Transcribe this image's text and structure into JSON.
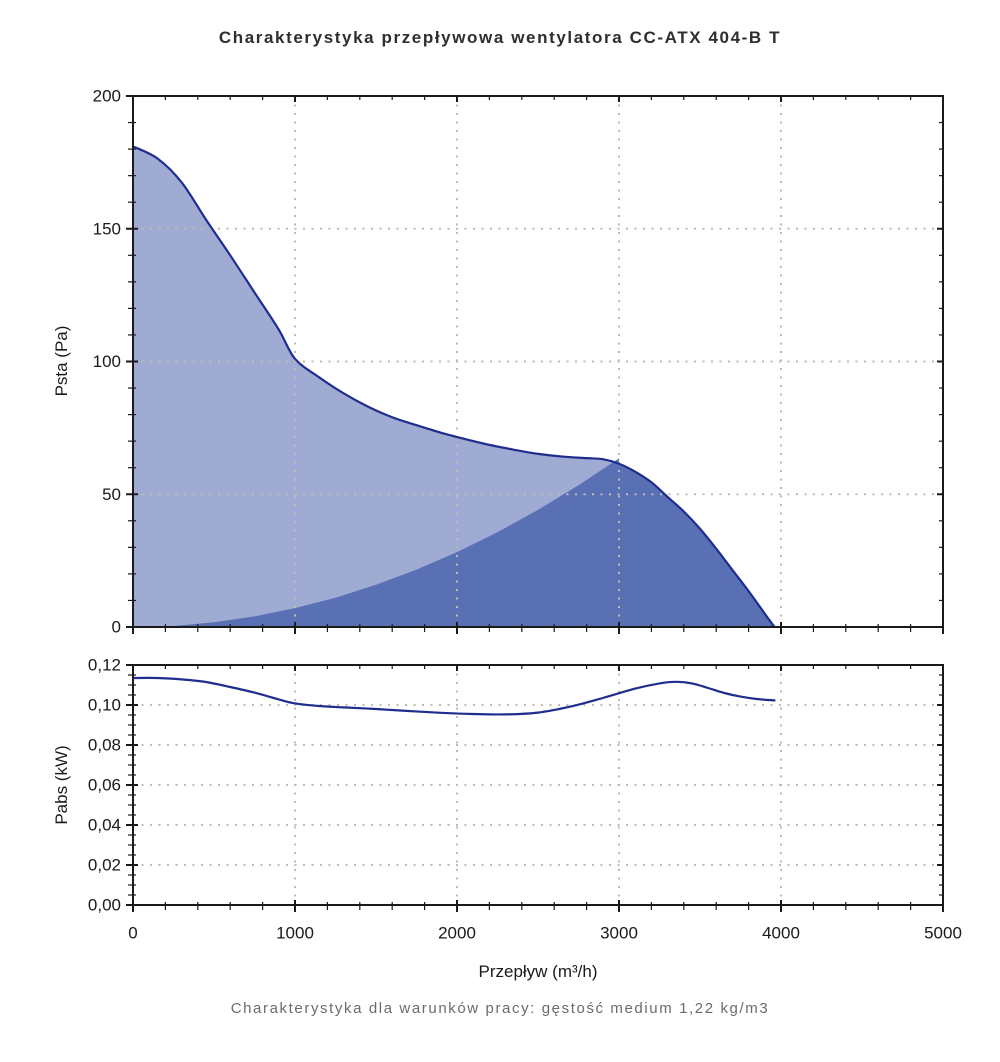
{
  "title": "Charakterystyka przepływowa wentylatora CC-ATX 404-B T",
  "caption": "Charakterystyka dla warunków pracy: gęstość medium 1,22 kg/m3",
  "axes": {
    "x_label": "Przepływ (m³/h)",
    "y_label_top": "Psta (Pa)",
    "y_label_bottom": "Pabs (kW)"
  },
  "colors": {
    "curve": "#1f2d8e",
    "area_light": "#9fabd2",
    "area_dark": "#5a70b5",
    "grid": "#bfbcae",
    "axis": "#1a1a1a"
  },
  "chart_data": [
    {
      "type": "area",
      "name": "pressure-chart",
      "ylabel": "Psta (Pa)",
      "xlabel": "Przepływ (m³/h)",
      "xlim": [
        0,
        5000
      ],
      "ylim": [
        0,
        200
      ],
      "x_major_ticks": [
        0,
        1000,
        2000,
        3000,
        4000,
        5000
      ],
      "x_minor_step": 200,
      "x_tick_labels": [],
      "y_major_ticks": [
        0,
        50,
        100,
        150,
        200
      ],
      "y_minor_step": 10,
      "y_tick_labels": [
        "0",
        "50",
        "100",
        "150",
        "200"
      ],
      "grid_x": [
        1000,
        2000,
        3000,
        4000
      ],
      "grid_y": [
        50,
        100,
        150
      ],
      "grid_style": "dotted",
      "legend": "none",
      "series": [
        {
          "name": "fan-curve",
          "role": "line-with-area",
          "fill": "light",
          "points": [
            [
              0,
              181
            ],
            [
              150,
              176.5
            ],
            [
              300,
              167.5
            ],
            [
              450,
              153.5
            ],
            [
              600,
              140
            ],
            [
              750,
              126
            ],
            [
              900,
              112
            ],
            [
              1000,
              101
            ],
            [
              1150,
              94
            ],
            [
              1300,
              88
            ],
            [
              1450,
              83
            ],
            [
              1600,
              79
            ],
            [
              1750,
              76
            ],
            [
              1900,
              73.2
            ],
            [
              2050,
              70.8
            ],
            [
              2200,
              68.6
            ],
            [
              2350,
              66.8
            ],
            [
              2500,
              65.2
            ],
            [
              2650,
              64.2
            ],
            [
              2800,
              63.6
            ],
            [
              2900,
              63.2
            ],
            [
              3000,
              61.5
            ],
            [
              3100,
              58.5
            ],
            [
              3200,
              54.5
            ],
            [
              3300,
              49
            ],
            [
              3400,
              43.5
            ],
            [
              3500,
              37
            ],
            [
              3600,
              29.5
            ],
            [
              3700,
              21.5
            ],
            [
              3800,
              13.5
            ],
            [
              3900,
              5
            ],
            [
              3960,
              0
            ]
          ]
        },
        {
          "name": "system-resistance-curve",
          "role": "area-only",
          "fill": "dark",
          "points": [
            [
              0,
              0
            ],
            [
              250,
              0.4
            ],
            [
              500,
              1.8
            ],
            [
              750,
              4
            ],
            [
              1000,
              7.1
            ],
            [
              1250,
              11
            ],
            [
              1500,
              15.9
            ],
            [
              1750,
              21.6
            ],
            [
              2000,
              28.2
            ],
            [
              2250,
              35.7
            ],
            [
              2500,
              44.1
            ],
            [
              2750,
              53.4
            ],
            [
              3000,
              63.5
            ]
          ]
        }
      ],
      "operating_point": [
        3000,
        62
      ]
    },
    {
      "type": "line",
      "name": "power-chart",
      "ylabel": "Pabs (kW)",
      "xlabel": "Przepływ (m³/h)",
      "xlim": [
        0,
        5000
      ],
      "ylim": [
        0,
        0.12
      ],
      "x_major_ticks": [
        0,
        1000,
        2000,
        3000,
        4000,
        5000
      ],
      "x_minor_step": 200,
      "x_tick_labels": [
        "0",
        "1000",
        "2000",
        "3000",
        "4000",
        "5000"
      ],
      "y_major_ticks": [
        0,
        0.02,
        0.04,
        0.06,
        0.08,
        0.1,
        0.12
      ],
      "y_minor_step": 0.005,
      "y_tick_labels": [
        "0,00",
        "0,02",
        "0,04",
        "0,06",
        "0,08",
        "0,10",
        "0,12"
      ],
      "grid_x": [
        1000,
        2000,
        3000,
        4000
      ],
      "grid_y": [
        0.02,
        0.04,
        0.06,
        0.08,
        0.1
      ],
      "grid_style": "dotted",
      "legend": "none",
      "series": [
        {
          "name": "power-curve",
          "role": "line",
          "points": [
            [
              0,
              0.1135
            ],
            [
              150,
              0.1135
            ],
            [
              300,
              0.1128
            ],
            [
              450,
              0.1115
            ],
            [
              600,
              0.109
            ],
            [
              750,
              0.1062
            ],
            [
              900,
              0.1028
            ],
            [
              1000,
              0.1008
            ],
            [
              1150,
              0.0995
            ],
            [
              1300,
              0.0988
            ],
            [
              1500,
              0.098
            ],
            [
              1700,
              0.097
            ],
            [
              1900,
              0.0961
            ],
            [
              2100,
              0.0955
            ],
            [
              2300,
              0.0953
            ],
            [
              2500,
              0.0962
            ],
            [
              2700,
              0.0992
            ],
            [
              2900,
              0.1035
            ],
            [
              3100,
              0.1082
            ],
            [
              3250,
              0.1108
            ],
            [
              3350,
              0.1116
            ],
            [
              3450,
              0.1108
            ],
            [
              3550,
              0.1085
            ],
            [
              3650,
              0.106
            ],
            [
              3750,
              0.1042
            ],
            [
              3850,
              0.103
            ],
            [
              3960,
              0.1023
            ]
          ]
        }
      ]
    }
  ]
}
